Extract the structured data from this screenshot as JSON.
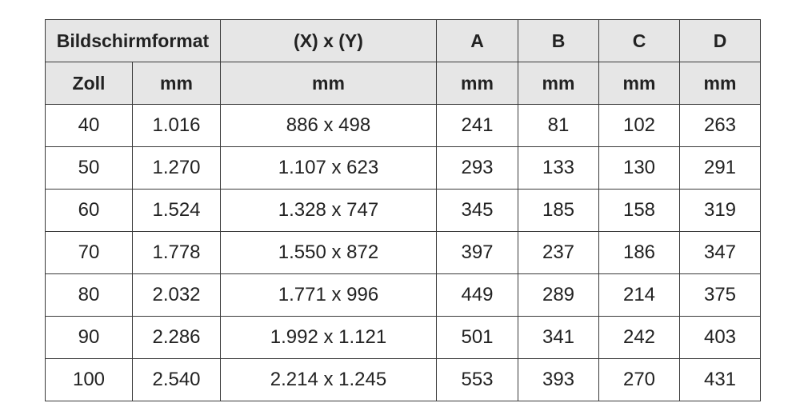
{
  "header": {
    "row1": [
      "Bildschirmformat",
      "(X) x (Y)",
      "A",
      "B",
      "C",
      "D"
    ],
    "row2": [
      "Zoll",
      "mm",
      "mm",
      "mm",
      "mm",
      "mm",
      "mm"
    ]
  },
  "rows": [
    [
      "40",
      "1.016",
      "886 x 498",
      "241",
      "81",
      "102",
      "263"
    ],
    [
      "50",
      "1.270",
      "1.107 x 623",
      "293",
      "133",
      "130",
      "291"
    ],
    [
      "60",
      "1.524",
      "1.328 x 747",
      "345",
      "185",
      "158",
      "319"
    ],
    [
      "70",
      "1.778",
      "1.550 x 872",
      "397",
      "237",
      "186",
      "347"
    ],
    [
      "80",
      "2.032",
      "1.771 x 996",
      "449",
      "289",
      "214",
      "375"
    ],
    [
      "90",
      "2.286",
      "1.992 x 1.121",
      "501",
      "341",
      "242",
      "403"
    ],
    [
      "100",
      "2.540",
      "2.214 x 1.245",
      "553",
      "393",
      "270",
      "431"
    ]
  ]
}
